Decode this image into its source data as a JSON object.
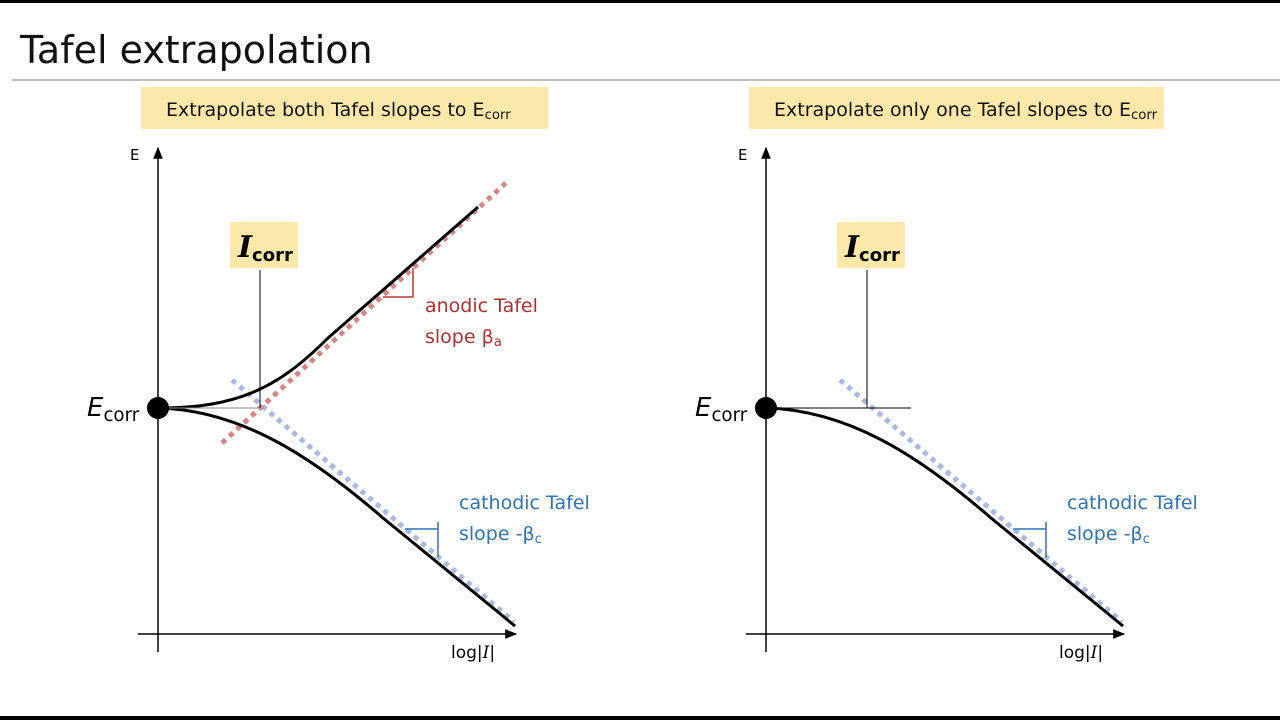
{
  "header": {
    "title": "Tafel extrapolation"
  },
  "panels": [
    {
      "banner": {
        "text": "Extrapolate both Tafel slopes to E",
        "sub": "corr"
      },
      "y_axis_label": "E",
      "x_axis_label": {
        "prefix": "log|",
        "var": "I",
        "suffix": "|"
      },
      "ecorr": {
        "symbol": "E",
        "sub": "corr"
      },
      "icorr": {
        "symbol": "I",
        "sub": "corr"
      },
      "anodic": {
        "line1": "anodic Tafel",
        "line2": "slope β",
        "sub": "a"
      },
      "cathodic": {
        "line1": "cathodic Tafel",
        "line2": "slope -β",
        "sub": "c"
      }
    },
    {
      "banner": {
        "text": "Extrapolate only one Tafel slopes to E",
        "sub": "corr"
      },
      "y_axis_label": "E",
      "x_axis_label": {
        "prefix": "log|",
        "var": "I",
        "suffix": "|"
      },
      "ecorr": {
        "symbol": "E",
        "sub": "corr"
      },
      "icorr": {
        "symbol": "I",
        "sub": "corr"
      },
      "cathodic": {
        "line1": "cathodic Tafel",
        "line2": "slope -β",
        "sub": "c"
      }
    }
  ]
}
